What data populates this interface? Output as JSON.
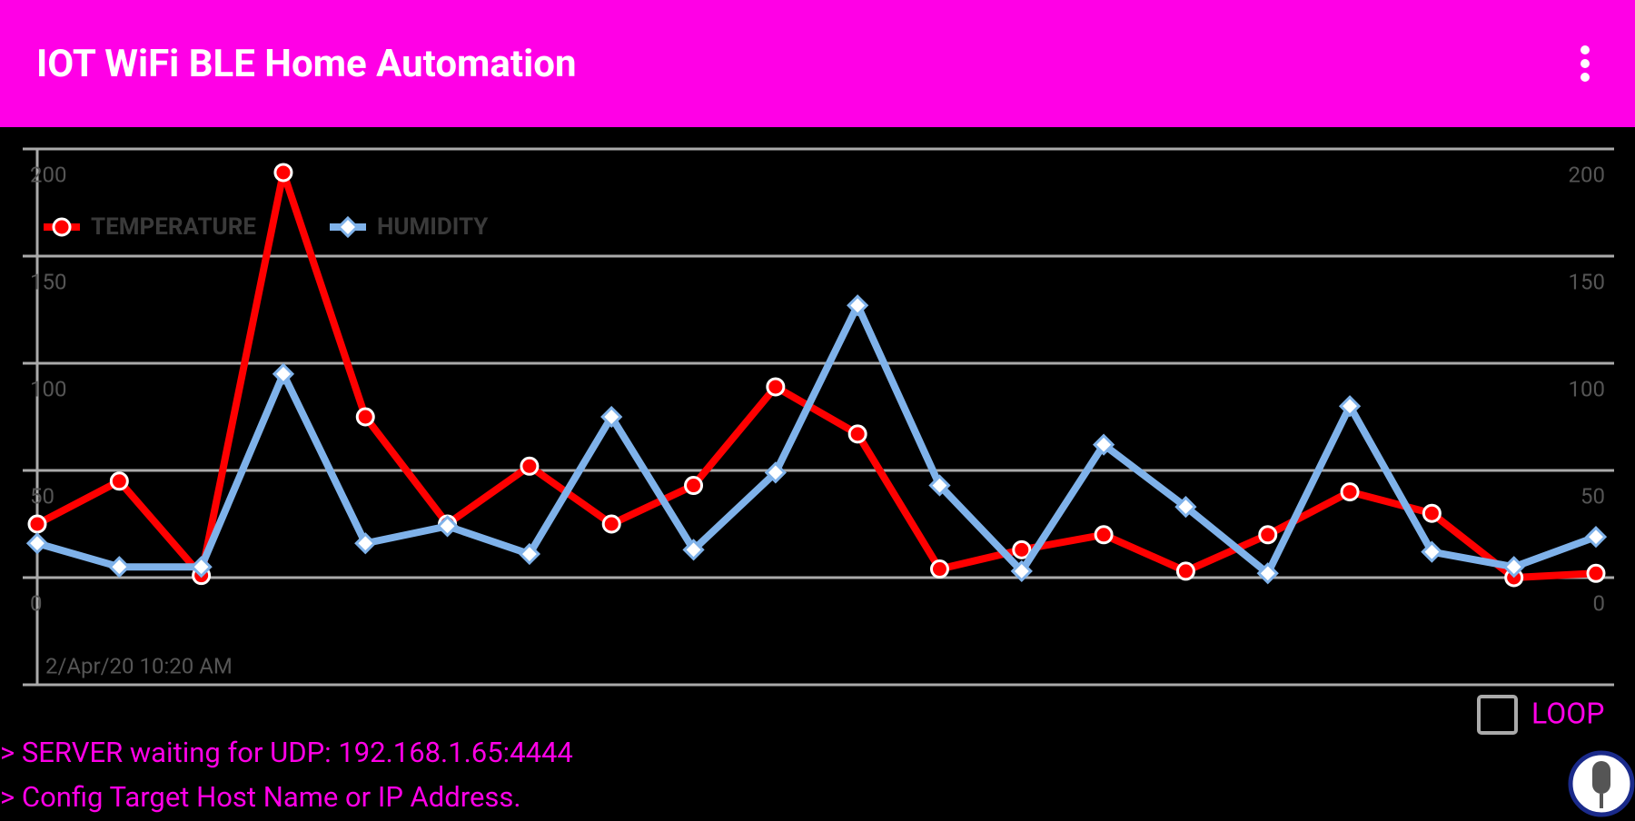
{
  "app_bar": {
    "title": "IOT WiFi BLE Home Automation"
  },
  "chart_data": {
    "type": "line",
    "x_label": "2/Apr/20 10:20 AM",
    "categories": [
      null,
      null,
      null,
      null,
      null,
      null,
      null,
      null,
      null,
      null,
      null,
      null,
      null,
      null,
      null,
      null,
      null,
      null,
      null,
      null
    ],
    "series": [
      {
        "name": "TEMPERATURE",
        "color": "#ff0000",
        "values": [
          25,
          45,
          1,
          189,
          75,
          25,
          52,
          25,
          43,
          89,
          67,
          4,
          13,
          20,
          3,
          20,
          40,
          30,
          0,
          2
        ]
      },
      {
        "name": "HUMIDITY",
        "color": "#7fb2ea",
        "values": [
          16,
          5,
          5,
          95,
          16,
          24,
          11,
          75,
          13,
          49,
          127,
          43,
          3,
          62,
          33,
          2,
          80,
          12,
          5,
          19
        ]
      }
    ],
    "ylim": [
      -50,
      200
    ],
    "yticks": [
      0,
      50,
      100,
      150,
      200
    ],
    "y2lim": [
      -50,
      200
    ],
    "y2ticks": [
      0,
      50,
      100,
      150,
      200
    ],
    "grid": true,
    "legend": "top-left"
  },
  "loop": {
    "label": "LOOP"
  },
  "console": [
    "> SERVER waiting for UDP: 192.168.1.65:4444",
    "> Config Target Host Name or IP Address."
  ]
}
